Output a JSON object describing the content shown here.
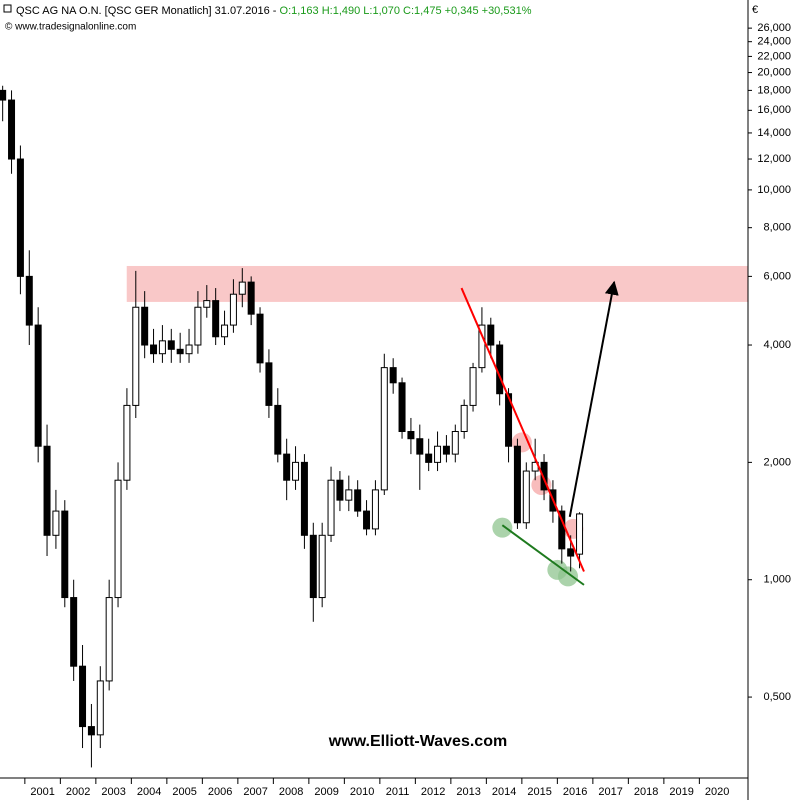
{
  "chart_data": {
    "type": "candlestick",
    "header": "QSC AG NA O.N. [QSC GER  Monatlich] 31.07.2016 -",
    "header_values": "O:1,163 H:1,490 L:1,070 C:1,475 +0,345 +30,531%",
    "source": "© www.tradesignalonline.com",
    "currency": "€",
    "watermark": "www.Elliott-Waves.com",
    "log_scale": true,
    "up_color": "#ffffff",
    "down_color": "#000000",
    "x": [
      2000.375,
      2000.625,
      2000.875,
      2001.125,
      2001.375,
      2001.625,
      2001.875,
      2002.125,
      2002.375,
      2002.625,
      2002.875,
      2003.125,
      2003.375,
      2003.625,
      2003.875,
      2004.125,
      2004.375,
      2004.625,
      2004.875,
      2005.125,
      2005.375,
      2005.625,
      2005.875,
      2006.125,
      2006.375,
      2006.625,
      2006.875,
      2007.125,
      2007.375,
      2007.625,
      2007.875,
      2008.125,
      2008.375,
      2008.625,
      2008.875,
      2009.125,
      2009.375,
      2009.625,
      2009.875,
      2010.125,
      2010.375,
      2010.625,
      2010.875,
      2011.125,
      2011.375,
      2011.625,
      2011.875,
      2012.125,
      2012.375,
      2012.625,
      2012.875,
      2013.125,
      2013.375,
      2013.625,
      2013.875,
      2014.125,
      2014.375,
      2014.625,
      2014.875,
      2015.125,
      2015.375,
      2015.625,
      2015.875,
      2016.125,
      2016.375,
      2016.625
    ],
    "open": [
      18,
      17,
      12,
      6,
      4.5,
      2.2,
      1.3,
      1.5,
      0.9,
      0.6,
      0.42,
      0.4,
      0.55,
      0.9,
      1.8,
      2.8,
      5.0,
      4.0,
      3.8,
      4.1,
      3.9,
      3.8,
      4.0,
      5.0,
      5.2,
      4.2,
      4.5,
      5.4,
      5.8,
      4.8,
      3.6,
      2.8,
      2.1,
      1.8,
      2.0,
      1.3,
      0.9,
      1.3,
      1.8,
      1.6,
      1.7,
      1.5,
      1.35,
      1.7,
      3.5,
      3.2,
      2.4,
      2.3,
      2.1,
      2.0,
      2.2,
      2.1,
      2.4,
      2.8,
      3.5,
      4.5,
      4.0,
      3.0,
      2.2,
      1.4,
      1.9,
      2.0,
      1.7,
      1.5,
      1.2,
      1.163
    ],
    "high": [
      18.5,
      18,
      13,
      7,
      5,
      2.5,
      1.7,
      1.6,
      1.0,
      0.68,
      0.48,
      0.6,
      1.0,
      2.0,
      3.1,
      6.2,
      5.5,
      4.4,
      4.5,
      4.4,
      4.3,
      4.4,
      5.5,
      5.7,
      5.6,
      4.9,
      5.9,
      6.3,
      6.0,
      5.0,
      3.9,
      3.1,
      2.3,
      2.2,
      2.1,
      1.4,
      1.4,
      1.95,
      1.9,
      1.85,
      1.8,
      1.6,
      1.8,
      3.8,
      3.7,
      3.3,
      2.6,
      2.5,
      2.3,
      2.4,
      2.35,
      2.5,
      2.9,
      3.6,
      5.0,
      4.7,
      4.1,
      3.1,
      2.3,
      2.0,
      2.3,
      2.1,
      1.8,
      1.55,
      1.3,
      1.49
    ],
    "low": [
      15,
      11,
      5.4,
      4,
      2,
      1.15,
      1.2,
      0.85,
      0.55,
      0.37,
      0.33,
      0.37,
      0.52,
      0.85,
      1.7,
      2.6,
      3.7,
      3.6,
      3.6,
      3.6,
      3.6,
      3.6,
      3.8,
      4.7,
      4.0,
      4.0,
      4.3,
      5.0,
      4.5,
      3.4,
      2.6,
      2.0,
      1.6,
      1.7,
      1.2,
      0.78,
      0.85,
      1.25,
      1.5,
      1.5,
      1.45,
      1.3,
      1.3,
      1.65,
      3.0,
      2.3,
      2.1,
      1.7,
      1.9,
      1.9,
      2.0,
      2.0,
      2.3,
      2.7,
      3.4,
      3.7,
      2.8,
      2.0,
      1.35,
      1.35,
      1.8,
      1.6,
      1.4,
      1.1,
      1.05,
      1.07
    ],
    "close": [
      17,
      12,
      6,
      4.5,
      2.2,
      1.3,
      1.5,
      0.9,
      0.6,
      0.42,
      0.4,
      0.55,
      0.9,
      1.8,
      2.8,
      5.0,
      4.0,
      3.8,
      4.1,
      3.9,
      3.8,
      4.0,
      5.0,
      5.2,
      4.2,
      4.5,
      5.4,
      5.8,
      4.8,
      3.6,
      2.8,
      2.1,
      1.8,
      2.0,
      1.3,
      0.9,
      1.3,
      1.8,
      1.6,
      1.7,
      1.5,
      1.35,
      1.7,
      3.5,
      3.2,
      2.4,
      2.3,
      2.1,
      2.0,
      2.2,
      2.1,
      2.4,
      2.8,
      3.5,
      4.5,
      4.0,
      3.0,
      2.2,
      1.4,
      1.9,
      2.0,
      1.7,
      1.5,
      1.2,
      1.15,
      1.475
    ],
    "xlim": [
      2000.3,
      2021.37
    ],
    "ylim": [
      0.31,
      30.7
    ],
    "xticks": [
      {
        "value": 2001.5,
        "label": "2001"
      },
      {
        "value": 2002.5,
        "label": "2002"
      },
      {
        "value": 2003.5,
        "label": "2003"
      },
      {
        "value": 2004.5,
        "label": "2004"
      },
      {
        "value": 2005.5,
        "label": "2005"
      },
      {
        "value": 2006.5,
        "label": "2006"
      },
      {
        "value": 2007.5,
        "label": "2007"
      },
      {
        "value": 2008.5,
        "label": "2008"
      },
      {
        "value": 2009.5,
        "label": "2009"
      },
      {
        "value": 2010.5,
        "label": "2010"
      },
      {
        "value": 2011.5,
        "label": "2011"
      },
      {
        "value": 2012.5,
        "label": "2012"
      },
      {
        "value": 2013.5,
        "label": "2013"
      },
      {
        "value": 2014.5,
        "label": "2014"
      },
      {
        "value": 2015.5,
        "label": "2015"
      },
      {
        "value": 2016.5,
        "label": "2016"
      },
      {
        "value": 2017.5,
        "label": "2017"
      },
      {
        "value": 2018.5,
        "label": "2018"
      },
      {
        "value": 2019.5,
        "label": "2019"
      },
      {
        "value": 2020.5,
        "label": "2020"
      }
    ],
    "yticks": [
      {
        "value": 26,
        "label": "26,000"
      },
      {
        "value": 24,
        "label": "24,000"
      },
      {
        "value": 22,
        "label": "22,000"
      },
      {
        "value": 20,
        "label": "20,000"
      },
      {
        "value": 18,
        "label": "18,000"
      },
      {
        "value": 16,
        "label": "16,000"
      },
      {
        "value": 14,
        "label": "14,000"
      },
      {
        "value": 12,
        "label": "12,000"
      },
      {
        "value": 10,
        "label": "10,000"
      },
      {
        "value": 8,
        "label": "8,000"
      },
      {
        "value": 6,
        "label": "6,000"
      },
      {
        "value": 4,
        "label": "4,000"
      },
      {
        "value": 2,
        "label": "2,000"
      },
      {
        "value": 1,
        "label": "1,000"
      },
      {
        "value": 0.5,
        "label": "0,500"
      }
    ],
    "zone": {
      "x": [
        2003.87,
        2021.37
      ],
      "y": [
        5.16,
        6.38
      ],
      "color": "#f9c8c8"
    },
    "lines": [
      {
        "color": "#ff0000",
        "x": [
          2013.3,
          2016.75
        ],
        "y": [
          5.6,
          1.05
        ]
      },
      {
        "color": "#1e7a1e",
        "x": [
          2014.45,
          2016.75
        ],
        "y": [
          1.38,
          0.97
        ]
      },
      {
        "color": "#000000",
        "x": [
          2016.35,
          2017.6
        ],
        "y": [
          1.45,
          5.8
        ],
        "arrow": true
      }
    ],
    "highlights": [
      {
        "color": "#8fc48f",
        "x": 2014.45,
        "y": 1.36
      },
      {
        "color": "#8fc48f",
        "x": 2016.0,
        "y": 1.06
      },
      {
        "color": "#8fc48f",
        "x": 2016.3,
        "y": 1.02
      },
      {
        "color": "#f5a6a6",
        "x": 2015.0,
        "y": 2.25
      },
      {
        "color": "#f5a6a6",
        "x": 2015.55,
        "y": 1.75
      },
      {
        "color": "#f5a6a6",
        "x": 2016.45,
        "y": 1.35
      }
    ]
  }
}
